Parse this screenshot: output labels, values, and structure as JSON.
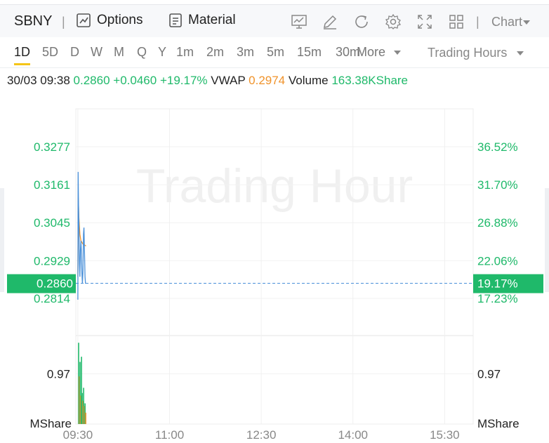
{
  "toolbar": {
    "symbol": "SBNY",
    "options_label": "Options",
    "material_label": "Material",
    "chart_label": "Chart",
    "icons": [
      "options-icon",
      "material-icon",
      "indicator-icon",
      "draw-icon",
      "refresh-icon",
      "settings-icon",
      "fullscreen-icon",
      "layout-icon",
      "caret-down-icon"
    ]
  },
  "periods": [
    "1D",
    "5D",
    "D",
    "W",
    "M",
    "Q",
    "Y",
    "1m",
    "2m",
    "3m",
    "5m",
    "15m",
    "30m"
  ],
  "active_period": "1D",
  "more_label": "More",
  "trading_hours_label": "Trading Hours",
  "info": {
    "datetime": "30/03 09:38",
    "price": "0.2860",
    "change": "+0.0460",
    "change_pct": "+19.17%",
    "vwap_label": "VWAP",
    "vwap": "0.2974",
    "volume_label": "Volume",
    "volume": "163.38KShare"
  },
  "watermark": "Trading Hour",
  "colors": {
    "up": "#1fb96a",
    "vwap": "#f0932b",
    "price_line": "#4a90d9",
    "highlight": "#1fb96a"
  },
  "chart_data": {
    "type": "line",
    "x_ticks": [
      "09:30",
      "11:00",
      "12:30",
      "14:00",
      "15:30"
    ],
    "x_tick_minutes": [
      0,
      90,
      180,
      270,
      360
    ],
    "x_range_minutes": [
      -2,
      388
    ],
    "price_ticks": [
      0.3277,
      0.3161,
      0.3045,
      0.2929,
      0.2814
    ],
    "price_tick_labels": [
      "0.3277",
      "0.3161",
      "0.3045",
      "0.2929",
      "0.2814"
    ],
    "pct_tick_labels": [
      "36.52%",
      "31.70%",
      "26.88%",
      "22.06%",
      "17.23%"
    ],
    "current_price": 0.286,
    "current_price_label": "0.2860",
    "current_pct_label": "19.17%",
    "price_series": [
      {
        "t": 0,
        "v": 0.281
      },
      {
        "t": 0.3,
        "v": 0.32
      },
      {
        "t": 0.6,
        "v": 0.311
      },
      {
        "t": 1,
        "v": 0.304
      },
      {
        "t": 1.5,
        "v": 0.292
      },
      {
        "t": 2,
        "v": 0.288
      },
      {
        "t": 2.5,
        "v": 0.296
      },
      {
        "t": 3,
        "v": 0.299
      },
      {
        "t": 3.5,
        "v": 0.295
      },
      {
        "t": 4,
        "v": 0.289
      },
      {
        "t": 4.5,
        "v": 0.286
      },
      {
        "t": 5,
        "v": 0.29
      },
      {
        "t": 5.5,
        "v": 0.301
      },
      {
        "t": 6,
        "v": 0.303
      },
      {
        "t": 6.5,
        "v": 0.296
      },
      {
        "t": 7,
        "v": 0.288
      },
      {
        "t": 7.5,
        "v": 0.286
      },
      {
        "t": 8,
        "v": 0.286
      }
    ],
    "vwap_series": [
      {
        "t": 0,
        "v": 0.288
      },
      {
        "t": 0.4,
        "v": 0.312
      },
      {
        "t": 1,
        "v": 0.306
      },
      {
        "t": 2,
        "v": 0.301
      },
      {
        "t": 3,
        "v": 0.299
      },
      {
        "t": 4,
        "v": 0.2985
      },
      {
        "t": 5,
        "v": 0.298
      },
      {
        "t": 6,
        "v": 0.2978
      },
      {
        "t": 7,
        "v": 0.2976
      },
      {
        "t": 8,
        "v": 0.2974
      }
    ],
    "volume_tick": 0.97,
    "volume_tick_label": "0.97",
    "volume_unit": "MShare",
    "volume_max": 1.6,
    "volume_bars": [
      {
        "t": 0.2,
        "v": 1.57,
        "up": true
      },
      {
        "t": 0.9,
        "v": 0.92,
        "up": false
      },
      {
        "t": 1.6,
        "v": 1.2,
        "up": true
      },
      {
        "t": 2.3,
        "v": 0.55,
        "up": false
      },
      {
        "t": 3.0,
        "v": 1.3,
        "up": true
      },
      {
        "t": 3.7,
        "v": 0.6,
        "up": true
      },
      {
        "t": 4.4,
        "v": 0.45,
        "up": false
      },
      {
        "t": 5.1,
        "v": 0.7,
        "up": true
      },
      {
        "t": 5.8,
        "v": 0.35,
        "up": false
      },
      {
        "t": 6.5,
        "v": 0.4,
        "up": true
      },
      {
        "t": 7.2,
        "v": 0.22,
        "up": false
      }
    ]
  }
}
